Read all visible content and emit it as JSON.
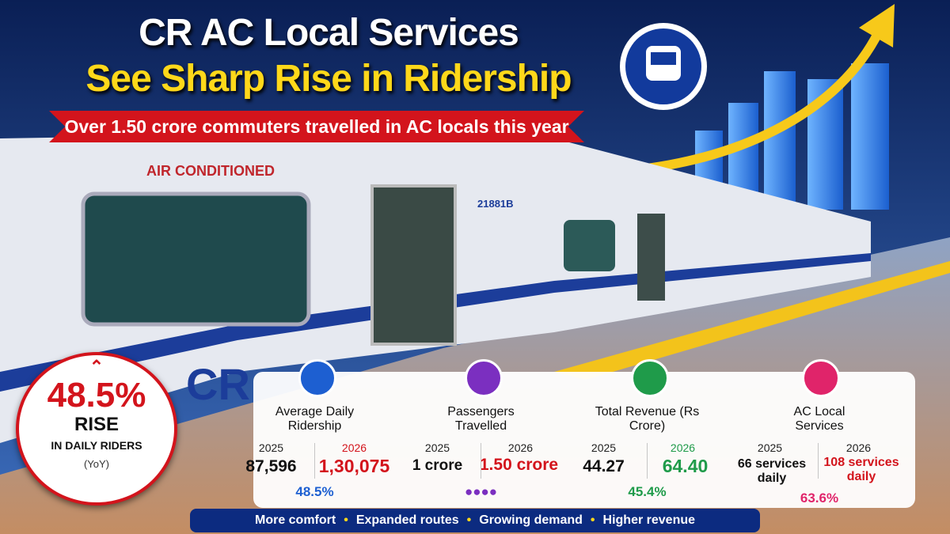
{
  "header": {
    "title_line1": "CR AC Local Services",
    "title_line2": "See Sharp Rise in Ridership",
    "subtitle": "Over 1.50 crore commuters travelled in AC locals this year"
  },
  "photo": {
    "coach_label": "AIR CONDITIONED",
    "coach_number": "21881B",
    "logo": "CR"
  },
  "badge": {
    "value": "48.5%",
    "label": "RISE",
    "sublabel": "IN DAILY RIDERS",
    "note": "(YoY)"
  },
  "stats": [
    {
      "title": "Average Daily Ridership",
      "year_a": "2025",
      "value_a": "87,596",
      "year_b": "2026",
      "value_b": "1,30,075",
      "change": "48.5%"
    },
    {
      "title": "Passengers Travelled",
      "year_a": "2025",
      "value_a": "1 crore",
      "year_b": "2026",
      "value_b": "1.50 crore"
    },
    {
      "title": "Total Revenue (Rs Crore)",
      "year_a": "2025",
      "value_a": "44.27",
      "year_b": "2026",
      "value_b": "64.40",
      "change": "45.4%"
    },
    {
      "title": "AC Local Services",
      "year_a": "2025",
      "value_a": "66 services daily",
      "year_b": "2026",
      "value_b": "108 services daily",
      "change": "63.6%"
    }
  ],
  "footer": {
    "items": [
      "More comfort",
      "Expanded routes",
      "Growing demand",
      "Higher revenue"
    ]
  }
}
